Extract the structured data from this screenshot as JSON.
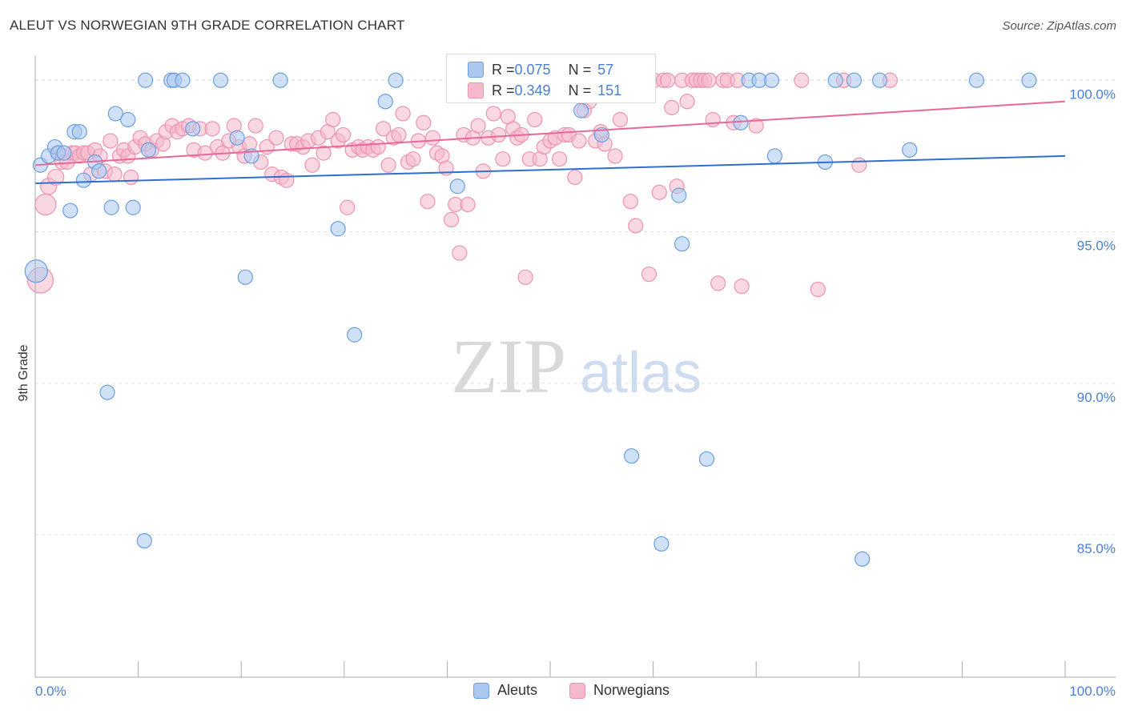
{
  "title": "ALEUT VS NORWEGIAN 9TH GRADE CORRELATION CHART",
  "source": "Source: ZipAtlas.com",
  "watermark": {
    "zip": "ZIP",
    "atlas": "atlas"
  },
  "legend": {
    "rows": [
      {
        "r_key": "R = ",
        "r_value": "0.075",
        "n_key": "N = ",
        "n_value": "57"
      },
      {
        "r_key": "R = ",
        "r_value": "0.349",
        "n_key": "N = ",
        "n_value": "151"
      }
    ]
  },
  "bottom_legend": [
    "Aleuts",
    "Norwegians"
  ],
  "colors": {
    "blue_fill": "#aac8f0",
    "blue_stroke": "#6a9ee0",
    "blue_line": "#2f6fd0",
    "pink_fill": "#f6b8cb",
    "pink_stroke": "#ec93b0",
    "pink_line": "#e8679a",
    "tick_text": "#4a7fd6",
    "grid": "#dddddd"
  },
  "chart_data": {
    "type": "scatter",
    "title": "ALEUT VS NORWEGIAN 9TH GRADE CORRELATION CHART",
    "xlabel": "",
    "ylabel": "9th Grade",
    "xlim": [
      0,
      100
    ],
    "ylim": [
      80.3,
      100.8
    ],
    "x_tick_labels": [
      "0.0%",
      "100.0%"
    ],
    "y_ticks": [
      {
        "value": 100,
        "label": "100.0%"
      },
      {
        "value": 95,
        "label": "95.0%"
      },
      {
        "value": 90,
        "label": "90.0%"
      },
      {
        "value": 85,
        "label": "85.0%"
      }
    ],
    "grid": "horizontal dashed",
    "series": [
      {
        "name": "Aleuts",
        "r": 0.075,
        "n": 57,
        "trend": {
          "x": [
            0,
            100
          ],
          "y": [
            96.6,
            97.5
          ]
        },
        "points": [
          [
            0.1,
            93.7,
            14
          ],
          [
            0.5,
            97.2,
            9
          ],
          [
            1.3,
            97.5,
            9
          ],
          [
            1.9,
            97.8,
            9
          ],
          [
            2.2,
            97.6,
            9
          ],
          [
            2.8,
            97.6,
            9
          ],
          [
            3.4,
            95.7,
            9
          ],
          [
            3.8,
            98.3,
            9
          ],
          [
            4.3,
            98.3,
            9
          ],
          [
            4.7,
            96.7,
            9
          ],
          [
            5.8,
            97.3,
            9
          ],
          [
            6.2,
            97.0,
            9
          ],
          [
            7.0,
            89.7,
            9
          ],
          [
            7.4,
            95.8,
            9
          ],
          [
            7.8,
            98.9,
            9
          ],
          [
            9.0,
            98.7,
            9
          ],
          [
            9.5,
            95.8,
            9
          ],
          [
            10.6,
            84.8,
            9
          ],
          [
            10.7,
            100.0,
            9
          ],
          [
            11.0,
            97.7,
            9
          ],
          [
            13.2,
            100.0,
            9
          ],
          [
            13.5,
            100.0,
            9
          ],
          [
            14.3,
            100.0,
            9
          ],
          [
            15.3,
            98.4,
            9
          ],
          [
            18.0,
            100.0,
            9
          ],
          [
            19.6,
            98.1,
            9
          ],
          [
            20.4,
            93.5,
            9
          ],
          [
            21.0,
            97.5,
            9
          ],
          [
            23.8,
            100.0,
            9
          ],
          [
            29.4,
            95.1,
            9
          ],
          [
            31.0,
            91.6,
            9
          ],
          [
            34.0,
            99.3,
            9
          ],
          [
            35.0,
            100.0,
            9
          ],
          [
            41.0,
            96.5,
            9
          ],
          [
            52.0,
            100.0,
            9
          ],
          [
            52.8,
            100.0,
            9
          ],
          [
            53.0,
            99.0,
            9
          ],
          [
            55.0,
            98.2,
            9
          ],
          [
            57.9,
            87.6,
            9
          ],
          [
            58.8,
            100.0,
            9
          ],
          [
            60.8,
            84.7,
            9
          ],
          [
            65.2,
            87.5,
            9
          ],
          [
            62.5,
            96.2,
            9
          ],
          [
            62.8,
            94.6,
            9
          ],
          [
            68.5,
            98.6,
            9
          ],
          [
            69.3,
            100.0,
            9
          ],
          [
            70.3,
            100.0,
            9
          ],
          [
            71.5,
            100.0,
            9
          ],
          [
            71.8,
            97.5,
            9
          ],
          [
            76.7,
            97.3,
            9
          ],
          [
            77.7,
            100.0,
            9
          ],
          [
            79.5,
            100.0,
            9
          ],
          [
            80.3,
            84.2,
            9
          ],
          [
            82.0,
            100.0,
            9
          ],
          [
            84.9,
            97.7,
            9
          ],
          [
            91.4,
            100.0,
            9
          ],
          [
            96.5,
            100.0,
            9
          ]
        ]
      },
      {
        "name": "Norwegians",
        "r": 0.349,
        "n": 151,
        "trend": {
          "x": [
            0,
            100
          ],
          "y": [
            97.2,
            99.3
          ]
        },
        "points": [
          [
            0.5,
            93.4,
            16
          ],
          [
            1.0,
            95.9,
            13
          ],
          [
            1.3,
            96.5,
            10
          ],
          [
            2.0,
            96.8,
            10
          ],
          [
            2.3,
            97.6,
            9
          ],
          [
            2.6,
            97.3,
            9
          ],
          [
            3.1,
            97.3,
            9
          ],
          [
            3.6,
            97.6,
            9
          ],
          [
            3.9,
            97.6,
            9
          ],
          [
            4.3,
            97.5,
            9
          ],
          [
            4.7,
            97.6,
            9
          ],
          [
            5.1,
            97.6,
            9
          ],
          [
            5.4,
            96.9,
            9
          ],
          [
            5.8,
            97.7,
            9
          ],
          [
            6.3,
            97.5,
            9
          ],
          [
            6.8,
            97.0,
            9
          ],
          [
            7.3,
            98.0,
            9
          ],
          [
            7.7,
            96.9,
            9
          ],
          [
            8.2,
            97.5,
            9
          ],
          [
            8.6,
            97.7,
            9
          ],
          [
            9.0,
            97.5,
            9
          ],
          [
            9.3,
            96.8,
            9
          ],
          [
            9.7,
            97.8,
            9
          ],
          [
            10.2,
            98.1,
            9
          ],
          [
            10.7,
            97.9,
            9
          ],
          [
            11.3,
            97.7,
            9
          ],
          [
            11.8,
            98.0,
            9
          ],
          [
            12.4,
            97.9,
            9
          ],
          [
            12.7,
            98.3,
            9
          ],
          [
            13.3,
            98.5,
            9
          ],
          [
            13.8,
            98.3,
            9
          ],
          [
            14.3,
            98.4,
            9
          ],
          [
            14.9,
            98.5,
            9
          ],
          [
            15.4,
            97.7,
            9
          ],
          [
            16.0,
            98.4,
            9
          ],
          [
            16.5,
            97.6,
            9
          ],
          [
            17.2,
            98.4,
            9
          ],
          [
            17.7,
            97.8,
            9
          ],
          [
            18.2,
            97.6,
            9
          ],
          [
            18.8,
            98.0,
            9
          ],
          [
            19.3,
            98.5,
            9
          ],
          [
            19.8,
            97.8,
            9
          ],
          [
            20.3,
            97.5,
            9
          ],
          [
            20.8,
            97.9,
            9
          ],
          [
            21.4,
            98.5,
            9
          ],
          [
            21.9,
            97.3,
            9
          ],
          [
            22.5,
            97.8,
            9
          ],
          [
            23.0,
            96.9,
            9
          ],
          [
            23.4,
            98.1,
            9
          ],
          [
            23.9,
            96.8,
            9
          ],
          [
            24.4,
            96.7,
            9
          ],
          [
            24.9,
            97.9,
            9
          ],
          [
            25.4,
            97.9,
            9
          ],
          [
            26.0,
            97.8,
            9
          ],
          [
            26.5,
            98.0,
            9
          ],
          [
            26.9,
            97.2,
            9
          ],
          [
            27.5,
            98.1,
            9
          ],
          [
            28.0,
            97.6,
            9
          ],
          [
            28.4,
            98.3,
            9
          ],
          [
            28.9,
            98.7,
            9
          ],
          [
            29.4,
            98.0,
            9
          ],
          [
            29.9,
            98.2,
            9
          ],
          [
            30.3,
            95.8,
            9
          ],
          [
            30.8,
            97.7,
            9
          ],
          [
            31.4,
            97.8,
            9
          ],
          [
            31.8,
            97.7,
            9
          ],
          [
            32.3,
            97.8,
            9
          ],
          [
            32.8,
            97.7,
            9
          ],
          [
            33.3,
            97.8,
            9
          ],
          [
            33.8,
            98.4,
            9
          ],
          [
            34.3,
            97.2,
            9
          ],
          [
            34.8,
            98.1,
            9
          ],
          [
            35.3,
            98.2,
            9
          ],
          [
            35.7,
            98.9,
            9
          ],
          [
            36.2,
            97.3,
            9
          ],
          [
            36.7,
            97.4,
            9
          ],
          [
            37.2,
            98.0,
            9
          ],
          [
            37.7,
            98.6,
            9
          ],
          [
            38.1,
            96.0,
            9
          ],
          [
            38.6,
            98.1,
            9
          ],
          [
            39.0,
            97.6,
            9
          ],
          [
            39.5,
            97.5,
            9
          ],
          [
            39.9,
            97.1,
            9
          ],
          [
            40.4,
            95.4,
            9
          ],
          [
            40.8,
            95.9,
            9
          ],
          [
            41.2,
            94.3,
            9
          ],
          [
            41.6,
            98.2,
            9
          ],
          [
            42.0,
            95.9,
            9
          ],
          [
            42.5,
            98.1,
            9
          ],
          [
            43.0,
            98.5,
            9
          ],
          [
            43.5,
            97.0,
            9
          ],
          [
            44.0,
            98.1,
            9
          ],
          [
            44.5,
            98.9,
            9
          ],
          [
            45.0,
            98.2,
            9
          ],
          [
            45.4,
            97.4,
            9
          ],
          [
            45.9,
            98.8,
            9
          ],
          [
            46.4,
            98.4,
            9
          ],
          [
            46.8,
            98.1,
            9
          ],
          [
            47.2,
            98.2,
            9
          ],
          [
            47.6,
            93.5,
            9
          ],
          [
            48.0,
            97.4,
            9
          ],
          [
            48.5,
            98.7,
            9
          ],
          [
            49.0,
            97.4,
            9
          ],
          [
            49.4,
            97.8,
            9
          ],
          [
            50.0,
            98.0,
            9
          ],
          [
            50.5,
            98.1,
            9
          ],
          [
            50.9,
            97.4,
            9
          ],
          [
            51.4,
            98.2,
            9
          ],
          [
            51.8,
            98.2,
            9
          ],
          [
            52.4,
            96.8,
            9
          ],
          [
            52.8,
            98.0,
            9
          ],
          [
            53.3,
            99.0,
            9
          ],
          [
            53.8,
            99.3,
            9
          ],
          [
            54.4,
            98.0,
            9
          ],
          [
            54.9,
            98.3,
            9
          ],
          [
            55.3,
            97.9,
            9
          ],
          [
            55.8,
            100.0,
            9
          ],
          [
            56.3,
            97.5,
            9
          ],
          [
            56.8,
            98.7,
            9
          ],
          [
            57.2,
            100.0,
            9
          ],
          [
            57.8,
            96.0,
            9
          ],
          [
            58.3,
            95.2,
            9
          ],
          [
            58.7,
            100.0,
            9
          ],
          [
            59.2,
            100.0,
            9
          ],
          [
            59.6,
            93.6,
            9
          ],
          [
            60.1,
            100.0,
            9
          ],
          [
            60.6,
            96.3,
            9
          ],
          [
            61.0,
            100.0,
            9
          ],
          [
            61.4,
            100.0,
            9
          ],
          [
            61.8,
            99.1,
            9
          ],
          [
            62.3,
            96.5,
            9
          ],
          [
            62.8,
            100.0,
            9
          ],
          [
            63.3,
            99.3,
            9
          ],
          [
            63.8,
            100.0,
            9
          ],
          [
            64.2,
            100.0,
            9
          ],
          [
            64.6,
            100.0,
            9
          ],
          [
            65.0,
            100.0,
            9
          ],
          [
            65.4,
            100.0,
            9
          ],
          [
            65.8,
            98.7,
            9
          ],
          [
            66.3,
            93.3,
            9
          ],
          [
            66.8,
            100.0,
            9
          ],
          [
            67.2,
            100.0,
            9
          ],
          [
            67.8,
            98.6,
            9
          ],
          [
            68.2,
            100.0,
            9
          ],
          [
            68.6,
            93.2,
            9
          ],
          [
            70.0,
            98.5,
            9
          ],
          [
            74.4,
            100.0,
            9
          ],
          [
            76.0,
            93.1,
            9
          ],
          [
            78.5,
            100.0,
            9
          ],
          [
            80.0,
            97.2,
            9
          ],
          [
            83.0,
            100.0,
            9
          ]
        ]
      }
    ]
  }
}
